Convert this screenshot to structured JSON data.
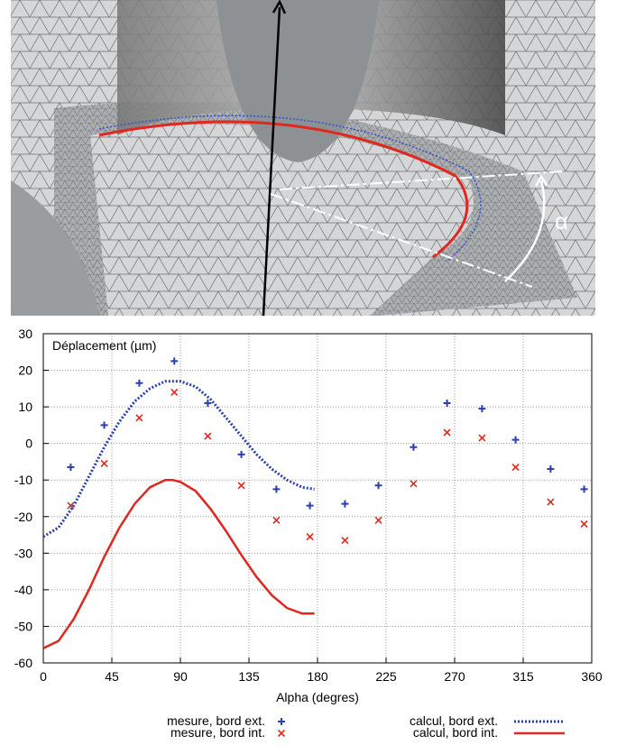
{
  "image": {
    "alpha_label": "α"
  },
  "chart_data": {
    "type": "line",
    "title": "Déplacement (µm)",
    "x_label": "Alpha (degres)",
    "xlim": [
      0,
      360
    ],
    "xticks": [
      0,
      45,
      90,
      135,
      180,
      225,
      270,
      315,
      360
    ],
    "ylim": [
      -60,
      30
    ],
    "yticks": [
      -60,
      -50,
      -40,
      -30,
      -20,
      -10,
      0,
      10,
      20,
      30
    ],
    "grid": true,
    "series": [
      {
        "name": "mesure,  bord ext.",
        "mode": "plus",
        "color": "#2a3fb0",
        "x": [
          18,
          40,
          63,
          86,
          108,
          130,
          153,
          175,
          198,
          220,
          243,
          265,
          288,
          310,
          333,
          355
        ],
        "values": [
          -6.5,
          5,
          16.5,
          22.5,
          11,
          -3,
          -12.5,
          -17,
          -16.5,
          -11.5,
          -1,
          11,
          9.5,
          1,
          -7,
          -12.5
        ]
      },
      {
        "name": "mesure,  bord int.",
        "mode": "cross",
        "color": "#e0281e",
        "x": [
          18,
          40,
          63,
          86,
          108,
          130,
          153,
          175,
          198,
          220,
          243,
          265,
          288,
          310,
          333,
          355
        ],
        "values": [
          -17,
          -5.5,
          7,
          14,
          2,
          -11.5,
          -21,
          -25.5,
          -26.5,
          -21,
          -11,
          3,
          1.5,
          -6.5,
          -16,
          -22
        ]
      },
      {
        "name": "calcul,  bord ext.",
        "mode": "dotted",
        "color": "#2a3fb0",
        "x": [
          0,
          10,
          20,
          30,
          40,
          50,
          60,
          70,
          80,
          90,
          100,
          110,
          120,
          130,
          140,
          150,
          160,
          170,
          178
        ],
        "values": [
          -25.5,
          -23,
          -17,
          -9,
          -1,
          6,
          11.5,
          15,
          17,
          17,
          15.5,
          12,
          7,
          2,
          -3,
          -7,
          -10,
          -12,
          -12.5
        ]
      },
      {
        "name": "calcul,  bord int.",
        "mode": "solid",
        "color": "#e0281e",
        "x": [
          0,
          10,
          20,
          30,
          40,
          50,
          60,
          70,
          80,
          85,
          90,
          100,
          110,
          120,
          130,
          140,
          150,
          160,
          170,
          178
        ],
        "values": [
          -56,
          -54,
          -48,
          -40,
          -31,
          -23,
          -16.5,
          -12,
          -10,
          -10,
          -10.5,
          -13,
          -18,
          -24,
          -30.5,
          -36.5,
          -41.5,
          -45,
          -46.5,
          -46.5
        ]
      }
    ]
  }
}
